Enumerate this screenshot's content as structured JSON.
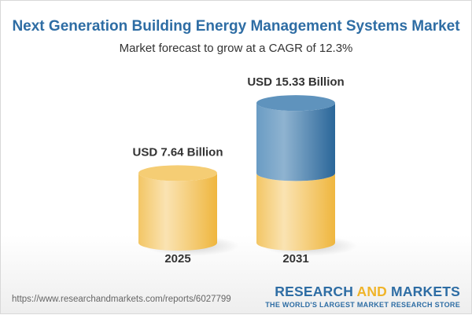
{
  "title": "Next Generation Building Energy Management Systems Market",
  "subtitle": "Market forecast to grow at a CAGR of 12.3%",
  "chart_data": {
    "type": "bar",
    "style": "3d-cylinder",
    "categories": [
      "2025",
      "2031"
    ],
    "values": [
      7.64,
      15.33
    ],
    "data_labels": [
      "USD 7.64 Billion",
      "USD 15.33 Billion"
    ],
    "unit": "USD Billion",
    "colors": {
      "base": "#f2c25a",
      "growth": "#3f7fb3"
    }
  },
  "footer": {
    "url": "https://www.researchandmarkets.com/reports/6027799",
    "logo_part1": "RESEARCH ",
    "logo_part2": "AND",
    "logo_part3": " MARKETS",
    "tagline": "THE WORLD'S LARGEST MARKET RESEARCH STORE"
  }
}
